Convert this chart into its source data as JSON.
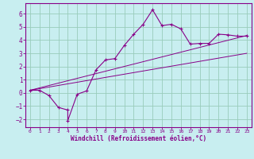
{
  "xlabel": "Windchill (Refroidissement éolien,°C)",
  "background_color": "#c8eef0",
  "line_color": "#880088",
  "xlim": [
    -0.5,
    23.5
  ],
  "ylim": [
    -2.6,
    6.8
  ],
  "xticks": [
    0,
    1,
    2,
    3,
    4,
    5,
    6,
    7,
    8,
    9,
    10,
    11,
    12,
    13,
    14,
    15,
    16,
    17,
    18,
    19,
    20,
    21,
    22,
    23
  ],
  "yticks": [
    -2,
    -1,
    0,
    1,
    2,
    3,
    4,
    5,
    6
  ],
  "grid_color": "#99ccbb",
  "main_line_x": [
    0,
    1,
    2,
    3,
    4,
    4,
    5,
    6,
    7,
    8,
    9,
    10,
    11,
    12,
    13,
    14,
    15,
    16,
    17,
    18,
    19,
    20,
    21,
    22,
    23
  ],
  "main_line_y": [
    0.2,
    0.2,
    -0.2,
    -1.1,
    -1.3,
    -2.1,
    -0.1,
    0.15,
    1.75,
    2.5,
    2.6,
    3.6,
    4.45,
    5.2,
    6.3,
    5.1,
    5.2,
    4.85,
    3.7,
    3.75,
    3.75,
    4.45,
    4.4,
    4.3,
    4.3
  ],
  "diag_line1_x": [
    0,
    23
  ],
  "diag_line1_y": [
    0.2,
    3.0
  ],
  "diag_line2_x": [
    0,
    23
  ],
  "diag_line2_y": [
    0.2,
    4.35
  ]
}
